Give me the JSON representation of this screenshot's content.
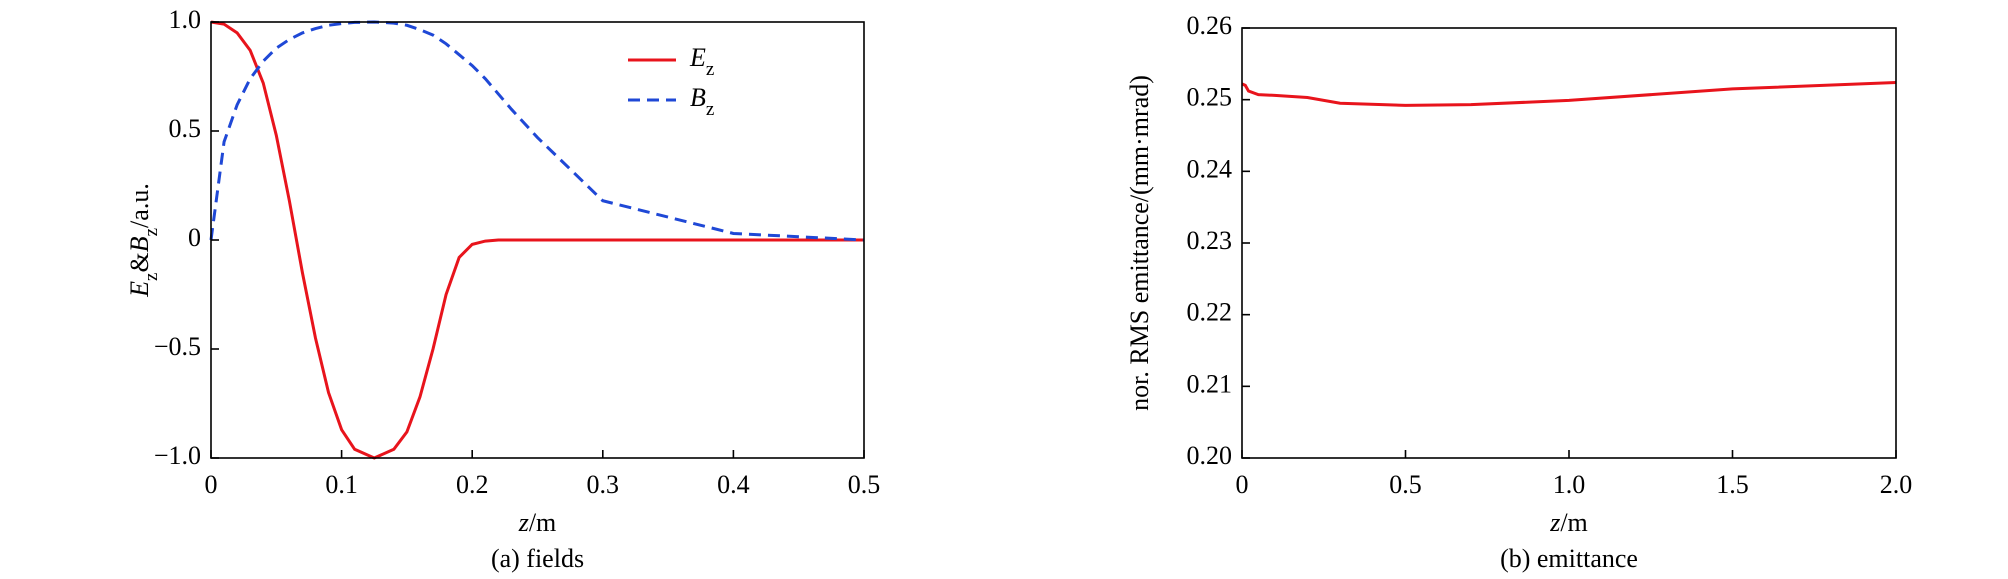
{
  "chart_data": [
    {
      "type": "line",
      "caption": "(a) fields",
      "xlabel": [
        "z",
        "/m"
      ],
      "ylabel": [
        "E",
        "z",
        "&",
        "B",
        "z",
        "/a.u."
      ],
      "x": [
        0,
        0.01,
        0.02,
        0.03,
        0.04,
        0.05,
        0.06,
        0.07,
        0.08,
        0.09,
        0.1,
        0.11,
        0.125,
        0.14,
        0.15,
        0.16,
        0.17,
        0.18,
        0.19,
        0.2,
        0.21,
        0.22,
        0.23,
        0.25,
        0.3,
        0.4,
        0.5
      ],
      "series": [
        {
          "name": [
            "E",
            "z"
          ],
          "color": "#e8141c",
          "dash": false,
          "values": [
            1,
            0.99,
            0.95,
            0.87,
            0.72,
            0.48,
            0.18,
            -0.15,
            -0.45,
            -0.7,
            -0.87,
            -0.96,
            -1,
            -0.96,
            -0.88,
            -0.72,
            -0.5,
            -0.25,
            -0.08,
            -0.02,
            -0.005,
            0,
            0,
            0,
            0,
            0,
            0
          ]
        },
        {
          "name": [
            "B",
            "z"
          ],
          "color": "#1f48d6",
          "dash": true,
          "values": [
            0,
            0.45,
            0.62,
            0.74,
            0.82,
            0.88,
            0.92,
            0.95,
            0.97,
            0.985,
            0.993,
            0.998,
            1,
            0.995,
            0.985,
            0.965,
            0.94,
            0.9,
            0.85,
            0.8,
            0.74,
            0.67,
            0.6,
            0.47,
            0.18,
            0.03,
            0
          ]
        }
      ],
      "xlim": [
        0,
        0.5
      ],
      "xticks": [
        0,
        0.1,
        0.2,
        0.3,
        0.4,
        0.5
      ],
      "ylim": [
        -1,
        1
      ],
      "yticks": [
        {
          "value": -1,
          "label": "−1.0"
        },
        {
          "value": -0.5,
          "label": "−0.5"
        },
        0,
        0.5,
        {
          "value": 1,
          "label": "1.0"
        }
      ],
      "legend": "upper right",
      "grid": false
    },
    {
      "type": "line",
      "caption": "(b) emittance",
      "xlabel": [
        "z",
        "/m"
      ],
      "ylabel": [
        "nor. RMS emittance/(mm·mrad)"
      ],
      "x": [
        0,
        0.01,
        0.02,
        0.05,
        0.1,
        0.2,
        0.3,
        0.5,
        0.7,
        1.0,
        1.5,
        2.0
      ],
      "series": [
        {
          "color": "#e8141c",
          "dash": false,
          "values": [
            0.2522,
            0.252,
            0.2512,
            0.2507,
            0.2506,
            0.2503,
            0.2495,
            0.2492,
            0.2493,
            0.2499,
            0.2515,
            0.2524
          ]
        }
      ],
      "xlim": [
        0,
        2
      ],
      "xticks": [
        0,
        0.5,
        {
          "value": 1,
          "label": "1.0"
        },
        1.5,
        {
          "value": 2,
          "label": "2.0"
        }
      ],
      "ylim": [
        0.2,
        0.26
      ],
      "yticks": [
        {
          "value": 0.2,
          "label": "0.20"
        },
        0.21,
        0.22,
        0.23,
        0.24,
        0.25,
        0.26
      ],
      "grid": false
    }
  ]
}
